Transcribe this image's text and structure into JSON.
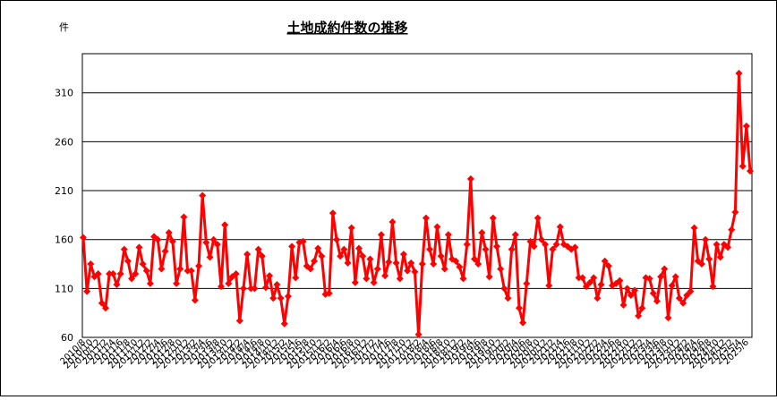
{
  "chart_data": {
    "type": "line",
    "title": "土地成約件数の推移",
    "y_unit": "件",
    "categories": [
      "2010/8",
      null,
      "2010/10",
      null,
      "2010/12",
      null,
      "2011/2",
      null,
      "2011/4",
      null,
      "2011/6",
      null,
      "2011/8",
      null,
      "2011/10",
      null,
      "2011/12",
      null,
      "2012/2",
      null,
      "2012/4",
      null,
      "2012/6",
      null,
      "2012/8",
      null,
      "2012/10",
      null,
      "2012/12",
      null,
      "2013/2",
      null,
      "2013/4",
      null,
      "2013/6",
      null,
      "2013/8",
      null,
      "2013/10",
      null,
      "2013/12",
      null,
      "2014/2",
      null,
      "2014/4",
      null,
      "2014/6",
      null,
      "2014/8",
      null,
      "2014/10",
      null,
      "2014/12",
      null,
      "2015/2",
      null,
      "2015/4",
      null,
      "2015/6",
      null,
      "2015/8",
      null,
      "2015/10",
      null,
      "2015/12",
      null,
      "2016/2",
      null,
      "2016/4",
      null,
      "2016/6",
      null,
      "2016/8",
      null,
      "2016/10",
      null,
      "2016/12",
      null,
      "2017/2",
      null,
      "2017/4",
      null,
      "2017/6",
      null,
      "2017/8",
      null,
      "2017/10",
      null,
      "2017/12",
      null,
      "2018/2",
      null,
      "2018/4",
      null,
      "2018/6",
      null,
      "2018/8",
      null,
      "2018/10",
      null,
      "2018/12",
      null,
      "2019/2",
      null,
      "2019/4",
      null,
      "2019/6",
      null,
      "2019/8",
      null,
      "2019/10",
      null,
      "2019/12",
      null,
      "2020/2",
      null,
      "2020/4",
      null,
      "2020/6",
      null,
      "2020/8",
      null,
      "2020/10",
      null,
      "2020/12",
      null,
      "2021/2",
      null,
      "2021/4",
      null,
      "2021/6",
      null,
      "2021/8",
      null,
      "2021/10",
      null,
      "2021/12",
      null,
      "2022/2",
      null,
      "2022/4",
      null,
      "2022/6",
      null,
      "2022/8",
      null,
      "2022/10",
      null,
      "2022/12",
      null,
      "2023/2",
      null,
      "2023/4",
      null,
      "2023/6",
      null,
      "2023/8",
      null,
      "2023/10",
      null,
      "2023/12",
      null,
      "2024/2",
      null,
      "2024/4",
      null,
      "2024/6",
      null,
      "2024/8",
      null,
      "2024/10",
      null,
      "2024/12",
      null,
      "2025/2",
      null,
      "2025/4",
      null,
      "2025/6",
      null
    ],
    "values": [
      162,
      107,
      135,
      122,
      125,
      95,
      90,
      125,
      125,
      114,
      125,
      150,
      138,
      120,
      125,
      152,
      135,
      128,
      115,
      163,
      160,
      130,
      148,
      167,
      158,
      115,
      130,
      183,
      128,
      128,
      98,
      133,
      205,
      157,
      142,
      160,
      155,
      112,
      175,
      115,
      122,
      125,
      77,
      110,
      145,
      110,
      110,
      150,
      143,
      111,
      123,
      100,
      114,
      100,
      74,
      102,
      153,
      121,
      157,
      158,
      133,
      130,
      138,
      151,
      143,
      104,
      105,
      187,
      160,
      143,
      150,
      136,
      172,
      116,
      151,
      143,
      120,
      140,
      116,
      130,
      165,
      123,
      137,
      178,
      136,
      120,
      145,
      128,
      136,
      127,
      63,
      135,
      182,
      150,
      135,
      173,
      143,
      130,
      165,
      140,
      138,
      132,
      120,
      155,
      222,
      140,
      135,
      167,
      150,
      122,
      182,
      153,
      130,
      110,
      100,
      150,
      165,
      90,
      75,
      115,
      158,
      153,
      182,
      160,
      155,
      113,
      150,
      155,
      173,
      155,
      153,
      150,
      152,
      121,
      121,
      112,
      116,
      121,
      100,
      114,
      138,
      133,
      113,
      115,
      118,
      93,
      110,
      103,
      108,
      82,
      90,
      121,
      120,
      105,
      97,
      122,
      130,
      80,
      113,
      122,
      100,
      95,
      103,
      107,
      172,
      138,
      135,
      160,
      140,
      112,
      155,
      142,
      155,
      152,
      170,
      188,
      330,
      235,
      276,
      230
    ],
    "color": "#ff0000",
    "ylim": [
      60,
      350
    ],
    "yticks": [
      60,
      110,
      160,
      210,
      260,
      310
    ],
    "grid": true
  }
}
